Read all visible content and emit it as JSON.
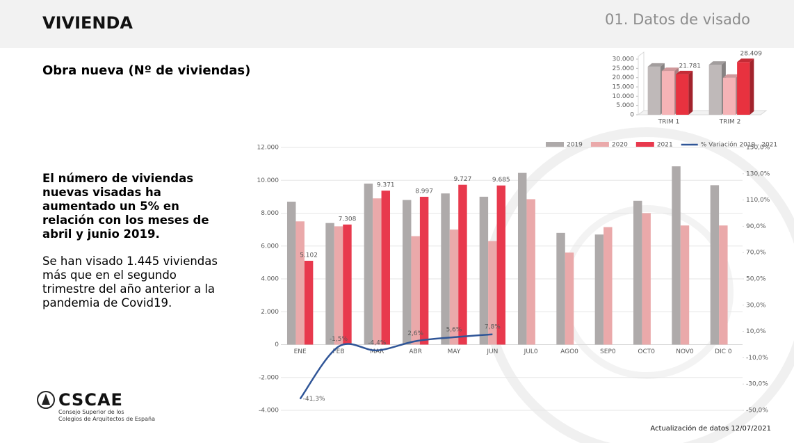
{
  "header": {
    "title": "VIVIENDA",
    "section": "01. Datos de visado"
  },
  "subtitle": "Obra nueva (Nº de viviendas)",
  "text": {
    "highlight": "El número de viviendas nuevas visadas ha aumentado un 5% en relación con los meses de abril y junio 2019.",
    "body": "Se han visado 1.445 viviendas más que en el segundo trimestre del año anterior a la pandemia de Covid19."
  },
  "logo": {
    "name": "CSCAE",
    "lines": [
      "Consejo Superior de los",
      "Colegios de Arquitectos de España"
    ]
  },
  "footer": "Actualización de datos 12/07/2021",
  "chart_data": [
    {
      "type": "bar",
      "3d": true,
      "categories": [
        "TRIM 1",
        "TRIM 2"
      ],
      "series": [
        {
          "color": "#bfb9b9",
          "values": [
            25900,
            26964
          ]
        },
        {
          "color": "#f5b3b6",
          "values": [
            23600,
            19900
          ]
        },
        {
          "color": "#e8323f",
          "values": [
            21781,
            28409
          ],
          "value_labels": [
            "21.781",
            "28.409"
          ]
        }
      ],
      "ylim": [
        0,
        30000
      ],
      "yticks": [
        0,
        {
          "value": 5000,
          "label": "5.000"
        },
        {
          "value": 10000,
          "label": "10.000"
        },
        {
          "value": 15000,
          "label": "15.000"
        },
        {
          "value": 20000,
          "label": "20.000"
        },
        {
          "value": 25000,
          "label": "25.000"
        },
        {
          "value": 30000,
          "label": "30.000"
        }
      ],
      "grid": false
    },
    {
      "type": "bar",
      "categories": [
        "ENE",
        "FEB",
        "MAR",
        "ABR",
        "MAY",
        "JUN",
        "JUL0",
        "AGO0",
        "SEP0",
        "OCT0",
        "NOV0",
        "DIC 0"
      ],
      "series": [
        {
          "name": "2019",
          "color": "#aeaaaa",
          "values": [
            8700,
            7400,
            9800,
            8800,
            9200,
            9000,
            10450,
            6800,
            6700,
            8750,
            10850,
            9700
          ]
        },
        {
          "name": "2020",
          "color": "#eaa9aa",
          "values": [
            7500,
            7200,
            8900,
            6600,
            7000,
            6300,
            8850,
            5600,
            7150,
            8000,
            7250,
            7250
          ]
        },
        {
          "name": "2021",
          "color": "#e8394d",
          "values": [
            5102,
            7308,
            9371,
            8997,
            9727,
            9685,
            null,
            null,
            null,
            null,
            null,
            null
          ],
          "value_labels": [
            "5.102",
            "7.308",
            "9.371",
            "8.997",
            "9.727",
            "9.685",
            null,
            null,
            null,
            null,
            null,
            null
          ]
        },
        {
          "name": "% Variación 2019 - 2021",
          "type": "line",
          "axis": "y2",
          "color": "#2f5597",
          "values": [
            -41.3,
            -1.5,
            -4.4,
            2.6,
            5.6,
            7.8,
            null,
            null,
            null,
            null,
            null,
            null
          ],
          "value_labels": [
            "-41,3%",
            "-1,5%",
            "-4,4%",
            "2,6%",
            "5,6%",
            "7,8%",
            null,
            null,
            null,
            null,
            null,
            null
          ]
        }
      ],
      "ylim": [
        -4000,
        12000
      ],
      "yticks": [
        {
          "value": -4000,
          "label": "-4.000"
        },
        {
          "value": -2000,
          "label": "-2.000"
        },
        0,
        {
          "value": 2000,
          "label": "2.000"
        },
        {
          "value": 4000,
          "label": "4.000"
        },
        {
          "value": 6000,
          "label": "6.000"
        },
        {
          "value": 8000,
          "label": "8.000"
        },
        {
          "value": 10000,
          "label": "10.000"
        },
        {
          "value": 12000,
          "label": "12.000"
        }
      ],
      "y2lim": [
        -50,
        150
      ],
      "y2ticks": [
        {
          "value": -50,
          "label": "-50,0%"
        },
        {
          "value": -30,
          "label": "-30,0%"
        },
        {
          "value": -10,
          "label": "-10,0%"
        },
        {
          "value": 10,
          "label": "10,0%"
        },
        {
          "value": 30,
          "label": "30,0%"
        },
        {
          "value": 50,
          "label": "50,0%"
        },
        {
          "value": 70,
          "label": "70,0%"
        },
        {
          "value": 90,
          "label": "90,0%"
        },
        {
          "value": 110,
          "label": "110,0%"
        },
        {
          "value": 130,
          "label": "130,0%"
        },
        {
          "value": 150,
          "label": "150,0%"
        }
      ],
      "grid": true,
      "legend": "top"
    }
  ]
}
